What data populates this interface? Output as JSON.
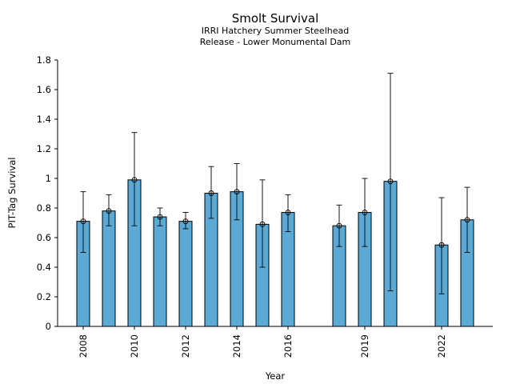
{
  "chart_data": {
    "type": "bar",
    "title": "Smolt Survival",
    "subtitle_lines": [
      "IRRI Hatchery Summer Steelhead",
      "Release - Lower Monumental Dam"
    ],
    "xlabel": "Year",
    "ylabel": "PIT-Tag Survival",
    "ylim": [
      0,
      1.8
    ],
    "xlim": [
      2007,
      2024
    ],
    "y_ticks": [
      "0",
      "0.2",
      "0.4",
      "0.6",
      "0.8",
      "1",
      "1.2",
      "1.4",
      "1.6",
      "1.8"
    ],
    "x_ticks": [
      "2008",
      "2010",
      "2012",
      "2014",
      "2016",
      "2019",
      "2022"
    ],
    "x": [
      2008,
      2009,
      2010,
      2011,
      2012,
      2013,
      2014,
      2015,
      2016,
      2018,
      2019,
      2020,
      2022,
      2023
    ],
    "values": [
      0.71,
      0.78,
      0.99,
      0.74,
      0.71,
      0.9,
      0.91,
      0.69,
      0.77,
      0.68,
      0.77,
      0.98,
      0.55,
      0.72
    ],
    "error_low": [
      0.5,
      0.68,
      0.68,
      0.68,
      0.66,
      0.73,
      0.72,
      0.4,
      0.64,
      0.54,
      0.54,
      0.24,
      0.22,
      0.5
    ],
    "error_high": [
      0.91,
      0.89,
      1.31,
      0.8,
      0.77,
      1.08,
      1.1,
      0.99,
      0.89,
      0.82,
      1.0,
      1.71,
      0.87,
      0.94
    ],
    "bar_color": "#5baad6",
    "grid": false,
    "legend": "none"
  }
}
